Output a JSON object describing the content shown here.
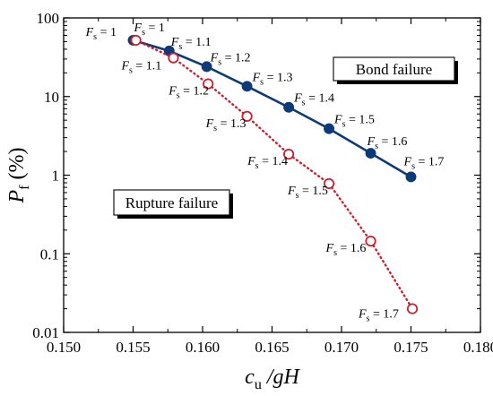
{
  "chart_data": {
    "type": "scatter",
    "x": [
      0.155,
      0.1576,
      0.1603,
      0.1632,
      0.1662,
      0.1691,
      0.1721,
      0.175
    ],
    "xlim": [
      0.15,
      0.18
    ],
    "xticks": [
      "0.150",
      "0.155",
      "0.160",
      "0.165",
      "0.170",
      "0.175",
      "0.180"
    ],
    "xlabel": {
      "main": "c",
      "sub": "u",
      "rest": " /gH"
    },
    "ylim": [
      0.01,
      100
    ],
    "yscale": "log",
    "yticks": [
      "0.01",
      "0.1",
      "1",
      "10",
      "100"
    ],
    "ylabel": {
      "main": "P",
      "sub": "f",
      "rest": " (%)"
    },
    "grid": false,
    "series": [
      {
        "color": "#0d3b7a",
        "marker": "filled-circle",
        "line": "solid",
        "x": [
          0.155,
          0.1576,
          0.1603,
          0.1632,
          0.1662,
          0.1691,
          0.1721,
          0.175
        ],
        "y": [
          52,
          38,
          24,
          13.5,
          7.3,
          3.9,
          1.9,
          0.95
        ],
        "labels": [
          "= 1",
          "= 1.1",
          "= 1.2",
          "= 1.3",
          "= 1.4",
          "= 1.5",
          "= 1.6",
          "= 1.7"
        ]
      },
      {
        "color": "#cc1f2b",
        "marker": "open-circle",
        "line": "dotted",
        "x": [
          0.1552,
          0.1579,
          0.1604,
          0.1632,
          0.1662,
          0.1691,
          0.1721,
          0.1751
        ],
        "y": [
          52,
          31,
          14.5,
          5.6,
          1.85,
          0.78,
          0.145,
          0.02
        ],
        "labels": [
          "= 1",
          "= 1.1",
          "= 1.2",
          "= 1.3",
          "= 1.4",
          "= 1.5",
          "= 1.6",
          "= 1.7"
        ]
      }
    ],
    "annotations": [
      "Bond failure",
      "Rupture failure"
    ],
    "label_prefix": {
      "main": "F",
      "sub": "s"
    }
  }
}
